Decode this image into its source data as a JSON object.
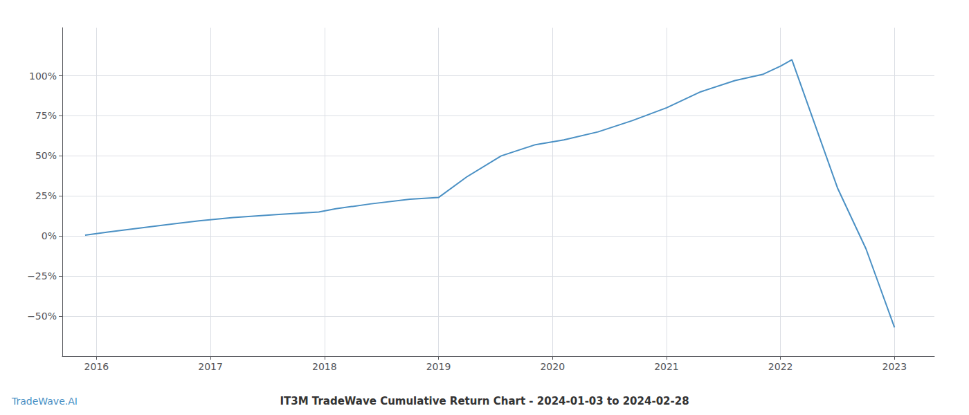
{
  "chart_data": {
    "type": "line",
    "title": "IT3M TradeWave Cumulative Return Chart - 2024-01-03 to 2024-02-28",
    "annotations": [
      "TradeWave.AI"
    ],
    "color": "#4a90c4",
    "x": [
      2015.9,
      2016.1,
      2016.5,
      2016.9,
      2017.2,
      2017.6,
      2017.95,
      2018.1,
      2018.4,
      2018.75,
      2019.0,
      2019.25,
      2019.55,
      2019.85,
      2020.1,
      2020.4,
      2020.7,
      2021.0,
      2021.3,
      2021.6,
      2021.85,
      2022.0,
      2022.1,
      2022.5,
      2022.75,
      2023.0
    ],
    "values": [
      0.5,
      2.5,
      6.0,
      9.5,
      11.5,
      13.5,
      15.0,
      17.0,
      20.0,
      23.0,
      24.0,
      37.0,
      50.0,
      57.0,
      60.0,
      65.0,
      72.0,
      80.0,
      90.0,
      97.0,
      101.0,
      106.0,
      110.0,
      30.0,
      -8.0,
      -57.0
    ],
    "xlim": [
      2015.7,
      2023.35
    ],
    "xticks": [
      2016,
      2017,
      2018,
      2019,
      2020,
      2021,
      2022,
      2023
    ],
    "ylim": [
      -75,
      130
    ],
    "yticks": [
      {
        "value": -50,
        "label": "−50%"
      },
      {
        "value": -25,
        "label": "−25%"
      },
      {
        "value": 0,
        "label": "0%"
      },
      {
        "value": 25,
        "label": "25%"
      },
      {
        "value": 50,
        "label": "50%"
      },
      {
        "value": 75,
        "label": "75%"
      },
      {
        "value": 100,
        "label": "100%"
      }
    ],
    "grid": true
  }
}
